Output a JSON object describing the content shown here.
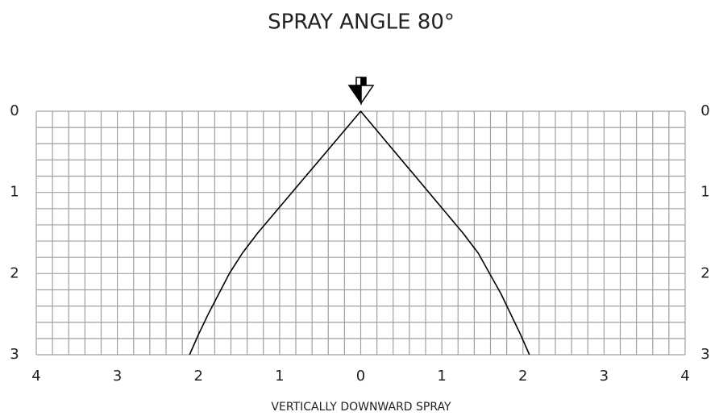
{
  "chart_data": {
    "type": "line",
    "title": "SPRAY ANGLE 80°",
    "x_label": "VERTICALLY DOWNWARD SPRAY",
    "x": [
      -2.11,
      -2.0,
      -1.88,
      -1.75,
      -1.62,
      -1.46,
      -1.27,
      0,
      1.26,
      1.45,
      1.59,
      1.73,
      1.85,
      1.97,
      2.08
    ],
    "values": [
      3,
      2.75,
      2.5,
      2.25,
      2,
      1.75,
      1.5,
      0,
      1.5,
      1.75,
      2,
      2.25,
      2.5,
      2.75,
      3
    ],
    "color": "#000000",
    "xlim": [
      -4,
      4
    ],
    "ylim": [
      0,
      3
    ],
    "y_inverted": true,
    "xticks": [
      {
        "value": -4,
        "label": "4"
      },
      {
        "value": -3,
        "label": "3"
      },
      {
        "value": -2,
        "label": "2"
      },
      {
        "value": -1,
        "label": "1"
      },
      0,
      1,
      2,
      3,
      4
    ],
    "yticks": [
      0,
      1,
      2,
      3
    ],
    "xgrid": [
      -4,
      -3.8,
      -3.6,
      -3.4,
      -3.2,
      -3,
      -2.8,
      -2.6,
      -2.4,
      -2.2,
      -2,
      -1.8,
      -1.6,
      -1.4,
      -1.2,
      -1,
      -0.8,
      -0.6,
      -0.4,
      -0.2,
      0,
      0.2,
      0.4,
      0.6,
      0.8,
      1,
      1.2,
      1.4,
      1.6,
      1.8,
      2,
      2.2,
      2.4,
      2.6,
      2.8,
      3,
      3.2,
      3.4,
      3.6,
      3.8,
      4
    ],
    "ygrid": [
      0,
      0.2,
      0.4,
      0.6,
      0.8,
      1,
      1.2,
      1.4,
      1.6,
      1.8,
      2,
      2.2,
      2.4,
      2.6,
      2.8,
      3
    ],
    "grid_color": "#a0a0a0"
  }
}
